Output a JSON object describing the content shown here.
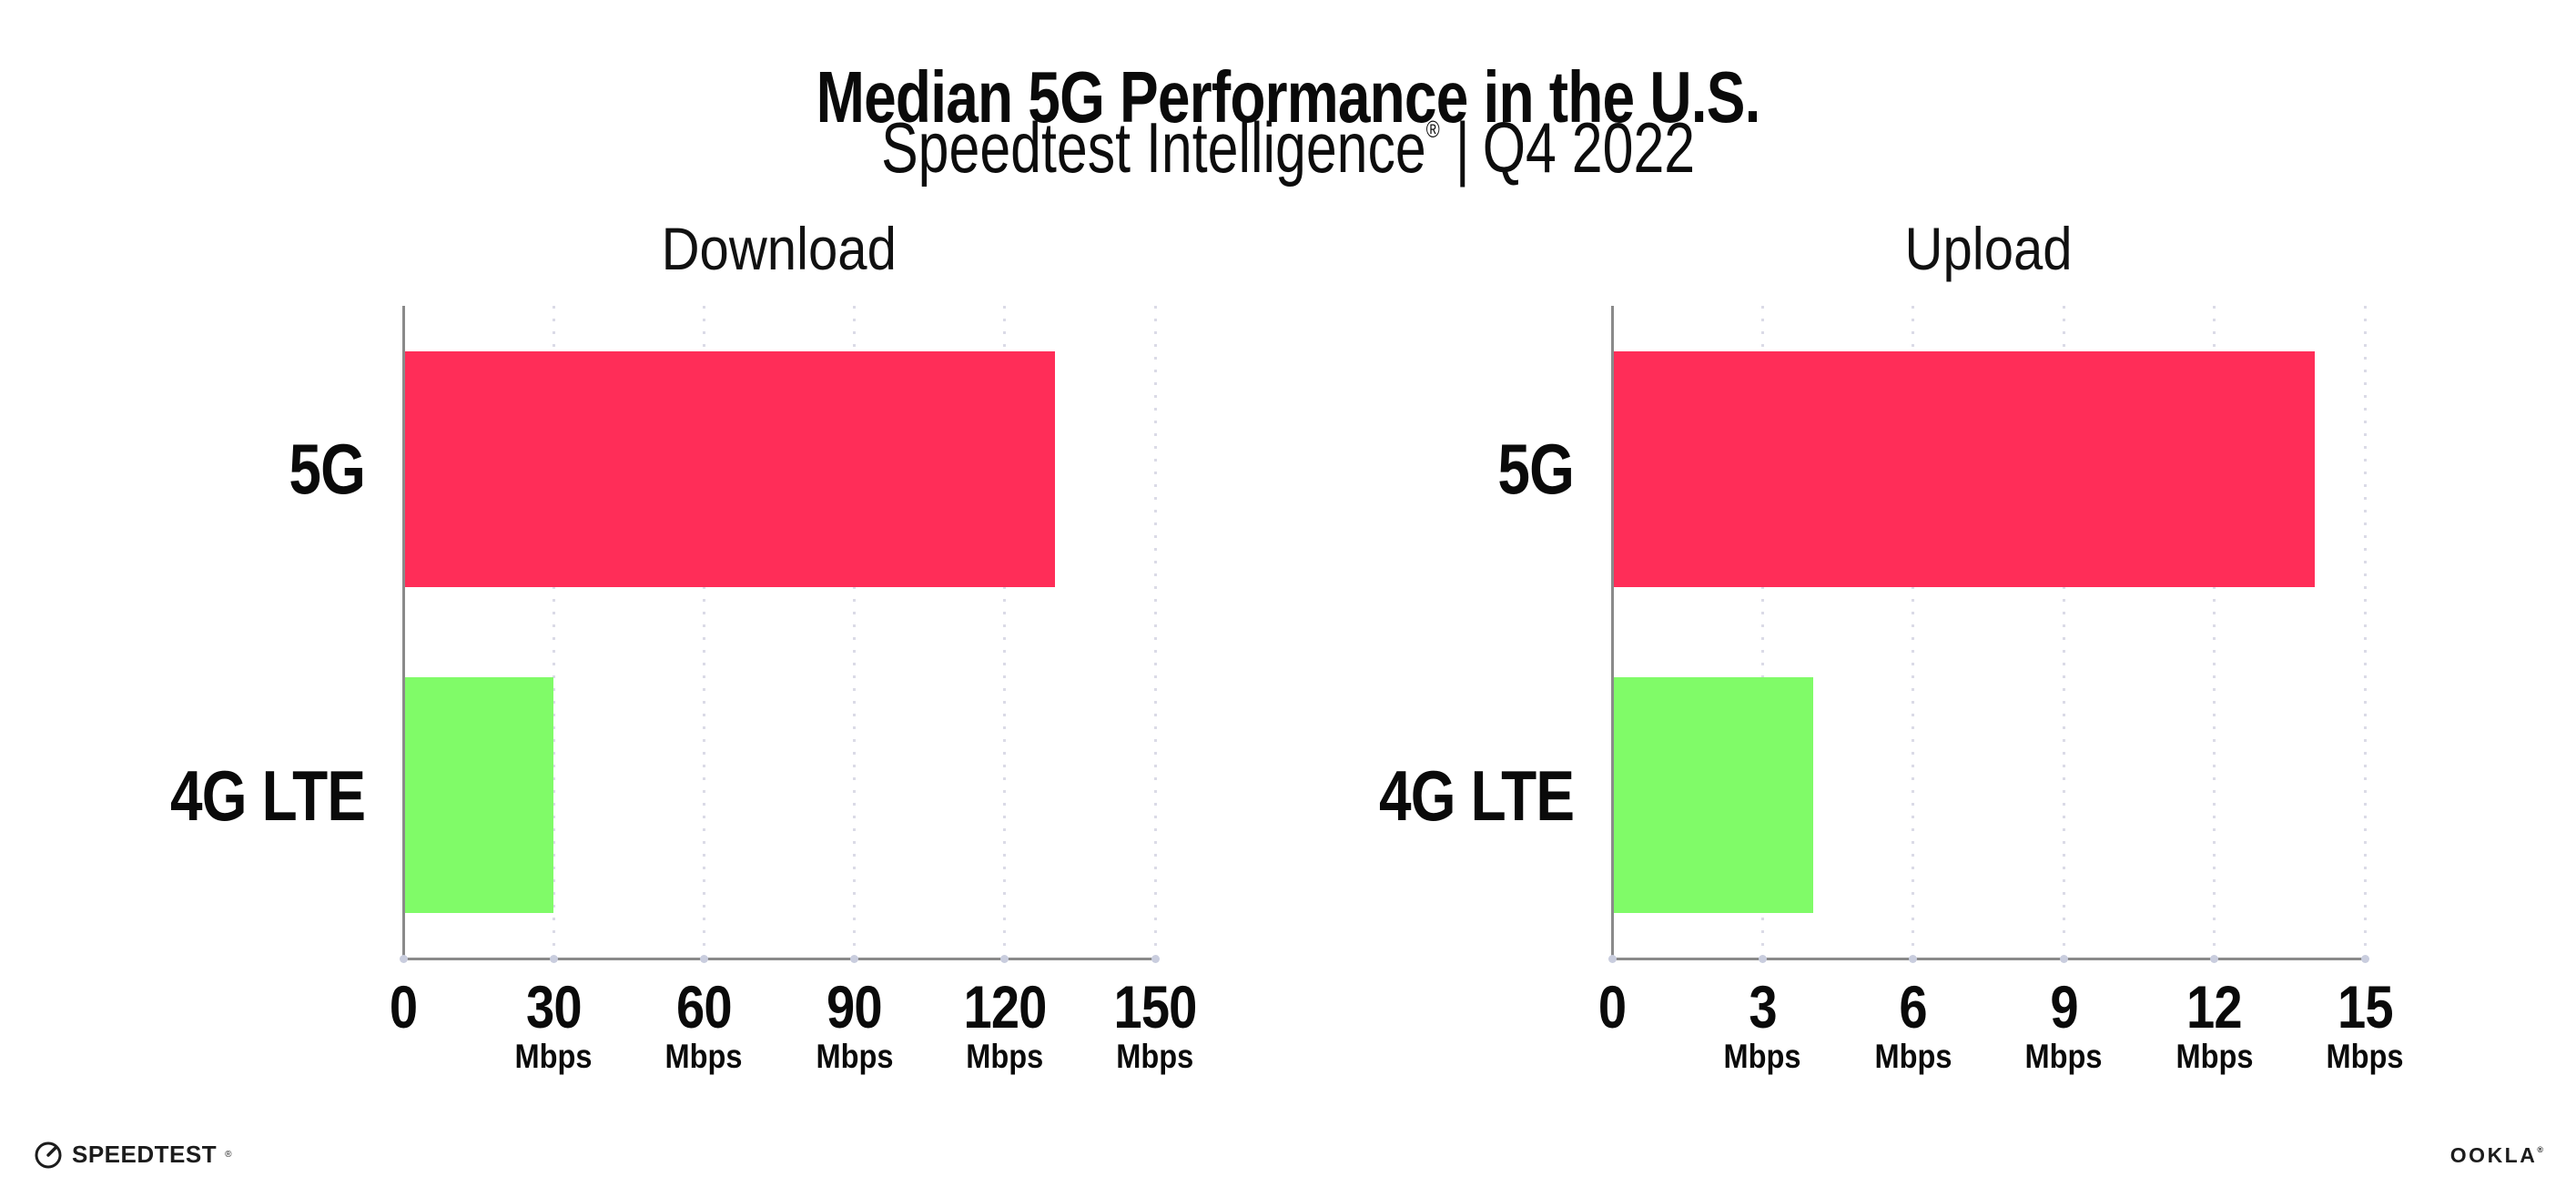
{
  "header": {
    "title": "Median 5G Performance in the U.S.",
    "subtitle_brand": "Speedtest Intelligence",
    "subtitle_reg": "®",
    "subtitle_sep": "|",
    "subtitle_period": "Q4 2022"
  },
  "chart_data": [
    {
      "type": "bar",
      "orientation": "horizontal",
      "title": "Download",
      "categories": [
        "5G",
        "4G LTE"
      ],
      "values": [
        130,
        30
      ],
      "unit": "Mbps",
      "xlim": [
        0,
        150
      ],
      "xticks": [
        0,
        30,
        60,
        90,
        120,
        150
      ],
      "grid": "dotted-vertical",
      "legend": "none",
      "bar_colors": [
        "#FF2D58",
        "#80FB68"
      ]
    },
    {
      "type": "bar",
      "orientation": "horizontal",
      "title": "Upload",
      "categories": [
        "5G",
        "4G LTE"
      ],
      "values": [
        14,
        4
      ],
      "unit": "Mbps",
      "xlim": [
        0,
        15
      ],
      "xticks": [
        0,
        3,
        6,
        9,
        12,
        15
      ],
      "grid": "dotted-vertical",
      "legend": "none",
      "bar_colors": [
        "#FF2D58",
        "#80FB68"
      ]
    }
  ],
  "colors": {
    "bar_5g": "#FF2D58",
    "bar_4g_lte": "#80FB68",
    "axis": "#8a8a8a",
    "grid_dot": "#dbdbe7",
    "text": "#0a0a0a"
  },
  "footer": {
    "speedtest_label": "SPEEDTEST",
    "speedtest_mark": "®",
    "ookla_label": "OOKLA",
    "ookla_mark": "®"
  }
}
